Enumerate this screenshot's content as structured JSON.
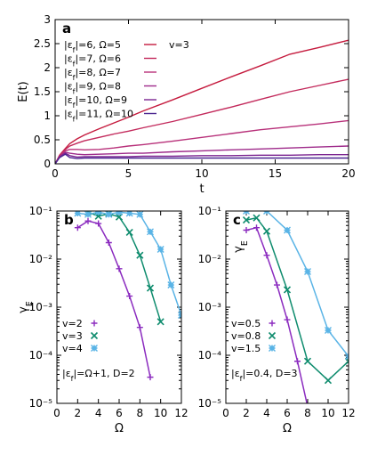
{
  "chart_data": [
    {
      "panel": "a",
      "type": "line",
      "xlabel": "t",
      "ylabel": "E(t)",
      "xlim": [
        0,
        20
      ],
      "ylim": [
        0,
        3
      ],
      "xticks": [
        0,
        5,
        10,
        15,
        20
      ],
      "yticks": [
        0,
        0.5,
        1,
        1.5,
        2,
        2.5,
        3
      ],
      "ytick_labels": [
        "0",
        "0.5",
        "1",
        "1.5",
        "2",
        "2.5",
        "3"
      ],
      "annotation": "v=3",
      "legend_placement": "top-left",
      "series": [
        {
          "name": "|ε_f|=6, Ω=5",
          "color": "#c51b3e",
          "x": [
            0,
            0.3,
            0.7,
            1,
            1.5,
            2,
            3,
            4,
            5,
            6,
            8,
            10,
            12,
            14,
            16,
            18,
            20
          ],
          "y": [
            0,
            0.18,
            0.32,
            0.42,
            0.52,
            0.6,
            0.73,
            0.85,
            0.97,
            1.1,
            1.33,
            1.57,
            1.81,
            2.04,
            2.28,
            2.42,
            2.57
          ]
        },
        {
          "name": "|ε_f|=7, Ω=6",
          "color": "#c32a5c",
          "x": [
            0,
            0.3,
            0.7,
            1,
            1.5,
            2,
            3,
            4,
            5,
            6,
            8,
            10,
            12,
            14,
            16,
            18,
            20
          ],
          "y": [
            0,
            0.17,
            0.3,
            0.37,
            0.43,
            0.48,
            0.55,
            0.62,
            0.68,
            0.75,
            0.88,
            1.03,
            1.18,
            1.34,
            1.5,
            1.63,
            1.76
          ]
        },
        {
          "name": "|ε_f|=8, Ω=7",
          "color": "#b8317a",
          "x": [
            0,
            0.3,
            0.7,
            1,
            1.5,
            2,
            3,
            4,
            5,
            6,
            8,
            10,
            12,
            14,
            16,
            18,
            20
          ],
          "y": [
            0,
            0.16,
            0.27,
            0.3,
            0.3,
            0.29,
            0.3,
            0.33,
            0.37,
            0.4,
            0.47,
            0.55,
            0.63,
            0.71,
            0.77,
            0.83,
            0.9
          ]
        },
        {
          "name": "|ε_f|=9, Ω=8",
          "color": "#9e2a8a",
          "x": [
            0,
            0.3,
            0.7,
            1,
            1.5,
            2,
            3,
            4,
            5,
            6,
            8,
            10,
            12,
            14,
            16,
            18,
            20
          ],
          "y": [
            0,
            0.15,
            0.24,
            0.22,
            0.2,
            0.19,
            0.2,
            0.21,
            0.22,
            0.22,
            0.25,
            0.27,
            0.29,
            0.31,
            0.33,
            0.35,
            0.37
          ]
        },
        {
          "name": "|ε_f|=10, Ω=9",
          "color": "#7b2490",
          "x": [
            0,
            0.3,
            0.7,
            1,
            1.5,
            2,
            3,
            4,
            5,
            6,
            8,
            10,
            12,
            14,
            16,
            18,
            20
          ],
          "y": [
            0,
            0.14,
            0.22,
            0.17,
            0.14,
            0.15,
            0.15,
            0.15,
            0.15,
            0.16,
            0.16,
            0.17,
            0.17,
            0.18,
            0.18,
            0.19,
            0.19
          ]
        },
        {
          "name": "|ε_f|=11, Ω=10",
          "color": "#4b2590",
          "x": [
            0,
            0.3,
            0.7,
            1,
            1.5,
            2,
            3,
            4,
            5,
            6,
            8,
            10,
            12,
            14,
            16,
            18,
            20
          ],
          "y": [
            0,
            0.13,
            0.2,
            0.13,
            0.11,
            0.12,
            0.12,
            0.12,
            0.12,
            0.12,
            0.12,
            0.12,
            0.12,
            0.12,
            0.12,
            0.12,
            0.12
          ]
        }
      ]
    },
    {
      "panel": "b",
      "type": "line",
      "xlabel": "Ω",
      "ylabel": "γ_E",
      "xlim": [
        0,
        12
      ],
      "ylim": [
        1e-05,
        0.1
      ],
      "log_y": true,
      "xticks": [
        0,
        2,
        4,
        6,
        8,
        10,
        12
      ],
      "yticks": [
        1e-05,
        0.0001,
        0.001,
        0.01,
        0.1
      ],
      "annotation": "|ε_f|=Ω+1, D=2",
      "legend_placement": "bottom-left",
      "series": [
        {
          "name": "v=2",
          "color": "#8b2bbf",
          "marker": "+",
          "x": [
            2,
            3,
            4,
            5,
            6,
            7,
            8,
            9
          ],
          "y": [
            0.045,
            0.062,
            0.055,
            0.022,
            0.0063,
            0.0017,
            0.00038,
            3.5e-05
          ]
        },
        {
          "name": "v=3",
          "color": "#0f8c6e",
          "marker": "x",
          "x": [
            3,
            4,
            5,
            6,
            7,
            8,
            9,
            10
          ],
          "y": [
            0.095,
            0.078,
            0.088,
            0.075,
            0.036,
            0.012,
            0.0025,
            0.0005
          ]
        },
        {
          "name": "v=4",
          "color": "#5ab4e6",
          "marker": "*",
          "x": [
            2,
            3,
            4,
            5,
            6,
            7,
            8,
            9,
            10,
            11,
            12
          ],
          "y": [
            0.09,
            0.085,
            0.095,
            0.085,
            0.095,
            0.09,
            0.085,
            0.037,
            0.016,
            0.0029,
            0.00068
          ]
        }
      ]
    },
    {
      "panel": "c",
      "type": "line",
      "xlabel": "Ω",
      "ylabel": "γ_E",
      "xlim": [
        0,
        12
      ],
      "ylim": [
        1e-05,
        0.1
      ],
      "log_y": true,
      "xticks": [
        0,
        2,
        4,
        6,
        8,
        10,
        12
      ],
      "yticks": [
        1e-05,
        0.0001,
        0.001,
        0.01,
        0.1
      ],
      "annotation": "|ε_f|=0.4, D=3",
      "legend_placement": "bottom-left",
      "series": [
        {
          "name": "v=0.5",
          "color": "#8b2bbf",
          "marker": "+",
          "x": [
            2,
            3,
            4,
            5,
            6,
            7,
            8
          ],
          "y": [
            0.04,
            0.045,
            0.012,
            0.0029,
            0.00055,
            7.5e-05,
            8.5e-06
          ]
        },
        {
          "name": "v=0.8",
          "color": "#0f8c6e",
          "marker": "x",
          "x": [
            2,
            3,
            4,
            6,
            8,
            10,
            12
          ],
          "y": [
            0.065,
            0.072,
            0.038,
            0.0023,
            7.5e-05,
            3e-05,
            7.5e-05
          ]
        },
        {
          "name": "v=1.5",
          "color": "#5ab4e6",
          "marker": "*",
          "x": [
            2,
            3,
            4,
            6,
            8,
            10,
            12
          ],
          "y": [
            0.1,
            0.13,
            0.1,
            0.04,
            0.0055,
            0.00033,
            9.5e-05
          ]
        }
      ]
    }
  ]
}
